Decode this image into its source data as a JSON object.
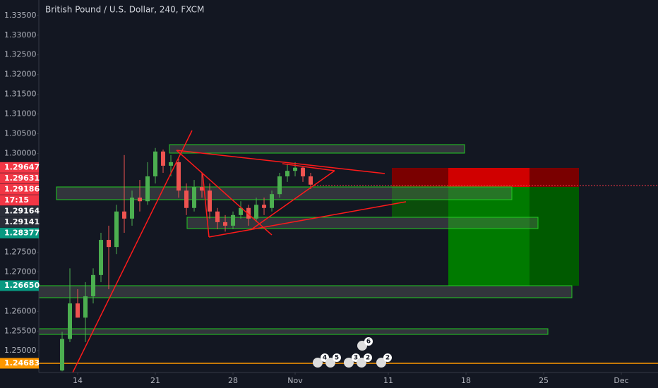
{
  "header": {
    "title": "British Pound / U.S. Dollar, 240, FXCM"
  },
  "chart_data": {
    "type": "candlestick",
    "x": [
      -1.0,
      -0.5,
      0,
      0.5,
      1.0,
      1.5,
      2.0,
      2.5,
      3.0,
      3.5,
      4.0,
      4.5,
      5.0,
      5.5,
      6.0,
      6.5,
      7.0,
      7.5,
      8.0,
      8.5,
      9.0,
      9.5,
      10.0,
      10.5,
      11.0,
      11.5,
      12.0,
      12.5,
      13.0,
      13.5,
      14.0,
      14.5,
      15.0
    ],
    "open": [
      1.245,
      1.253,
      1.262,
      1.2584,
      1.2638,
      1.2692,
      1.2781,
      1.2763,
      1.2853,
      1.2835,
      1.2888,
      1.2879,
      1.2942,
      1.3005,
      1.2969,
      1.2978,
      1.2906,
      1.2862,
      1.2915,
      1.2906,
      1.2853,
      1.2826,
      1.2817,
      1.2844,
      1.2862,
      1.2835,
      1.287,
      1.2862,
      1.2897,
      1.2942,
      1.2956,
      1.2964,
      1.2942
    ],
    "high": [
      1.2548,
      1.2709,
      1.2656,
      1.2674,
      1.2709,
      1.2799,
      1.2817,
      1.287,
      1.2996,
      1.2906,
      1.2933,
      1.2978,
      1.3014,
      1.301,
      1.2996,
      1.2987,
      1.2924,
      1.2933,
      1.2951,
      1.2924,
      1.2862,
      1.2844,
      1.2853,
      1.2879,
      1.287,
      1.2888,
      1.2888,
      1.2906,
      1.2951,
      1.2974,
      1.2978,
      1.2967,
      1.2951
    ],
    "low": [
      1.2448,
      1.2522,
      1.2584,
      1.2522,
      1.262,
      1.2674,
      1.2656,
      1.2745,
      1.2799,
      1.2817,
      1.2853,
      1.287,
      1.2924,
      1.2951,
      1.2942,
      1.2888,
      1.2844,
      1.2853,
      1.2888,
      1.2835,
      1.2808,
      1.2802,
      1.2808,
      1.2835,
      1.2817,
      1.2826,
      1.2844,
      1.2853,
      1.2888,
      1.2928,
      1.2942,
      1.2928,
      1.291
    ],
    "close": [
      1.253,
      1.262,
      1.2584,
      1.2638,
      1.2692,
      1.2781,
      1.2763,
      1.2853,
      1.2835,
      1.2888,
      1.2879,
      1.2942,
      1.3005,
      1.2969,
      1.2978,
      1.2906,
      1.2862,
      1.2915,
      1.2906,
      1.2853,
      1.2826,
      1.2817,
      1.2844,
      1.2862,
      1.2835,
      1.287,
      1.2862,
      1.2897,
      1.2942,
      1.2956,
      1.2964,
      1.2942,
      1.2921
    ],
    "up_color": "#4caf50",
    "down_color": "#ef5350",
    "xlim": [
      -2.5,
      37.36
    ],
    "xticks": [
      {
        "value": 0,
        "label": "14"
      },
      {
        "value": 5,
        "label": "21"
      },
      {
        "value": 10,
        "label": "28"
      },
      {
        "value": 14,
        "label": "Nov"
      },
      {
        "value": 20,
        "label": "11"
      },
      {
        "value": 25,
        "label": "18"
      },
      {
        "value": 30,
        "label": "25"
      },
      {
        "value": 35,
        "label": "Dec"
      }
    ],
    "ylim": [
      1.2445,
      1.3389
    ],
    "yticks": [
      {
        "value": 1.335,
        "label": "1.33500"
      },
      {
        "value": 1.33,
        "label": "1.33000"
      },
      {
        "value": 1.325,
        "label": "1.32500"
      },
      {
        "value": 1.32,
        "label": "1.32000"
      },
      {
        "value": 1.315,
        "label": "1.31500"
      },
      {
        "value": 1.31,
        "label": "1.31000"
      },
      {
        "value": 1.305,
        "label": "1.30500"
      },
      {
        "value": 1.3,
        "label": "1.30000"
      },
      {
        "value": 1.275,
        "label": "1.27500"
      },
      {
        "value": 1.27,
        "label": "1.27000"
      },
      {
        "value": 1.26,
        "label": "1.26000"
      },
      {
        "value": 1.255,
        "label": "1.25500"
      },
      {
        "value": 1.25,
        "label": "1.25000"
      }
    ],
    "price_labels": [
      {
        "value": 1.29647,
        "label": "1.29647",
        "color": "#f23645"
      },
      {
        "value": 1.29631,
        "label": "1.29631",
        "color": "#f23645"
      },
      {
        "value": 1.29186,
        "label": "1.29186",
        "color": "#f23645"
      },
      {
        "label": "17:15",
        "color": "#f23645"
      },
      {
        "value": 1.29164,
        "label": "1.29164",
        "color": "#2a2e39"
      },
      {
        "value": 1.29141,
        "label": "1.29141",
        "color": "#2a2e39"
      },
      {
        "value": 1.28377,
        "label": "1.28377",
        "color": "#089981"
      },
      {
        "value": 1.2665,
        "label": "1.26650",
        "color": "#089981"
      },
      {
        "value": 1.24683,
        "label": "1.24683",
        "color": "#ff9800"
      }
    ]
  },
  "events": [
    "4",
    "5",
    "3",
    "2",
    "6",
    "2"
  ]
}
